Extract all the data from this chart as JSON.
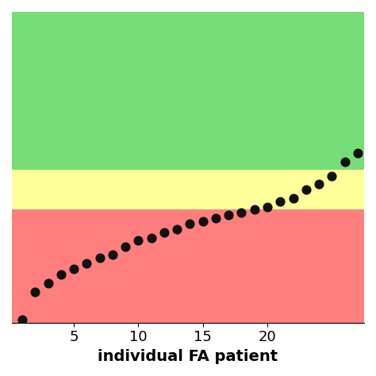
{
  "x_values": [
    1,
    2,
    3,
    4,
    5,
    6,
    7,
    8,
    9,
    10,
    11,
    12,
    13,
    14,
    15,
    16,
    17,
    18,
    19,
    20,
    21,
    22,
    23,
    24,
    25,
    26,
    27
  ],
  "y_values": [
    0.5,
    5.5,
    7.0,
    8.5,
    9.5,
    10.5,
    11.5,
    12.0,
    13.5,
    14.5,
    15.0,
    16.0,
    16.5,
    17.5,
    18.0,
    18.5,
    19.0,
    19.5,
    20.0,
    20.5,
    21.5,
    22.0,
    23.5,
    24.5,
    26.0,
    28.5,
    30.0
  ],
  "xlabel": "individual FA patient",
  "xlabel_fontsize": 14,
  "xlabel_fontweight": "bold",
  "tick_fontsize": 13,
  "red_ymin": 0,
  "red_ymax": 20,
  "yellow_ymin": 20,
  "yellow_ymax": 27,
  "green_ymin": 27,
  "green_ymax": 55,
  "red_color": "#FF7F7F",
  "yellow_color": "#FFFF99",
  "green_color": "#77DD77",
  "dot_color": "#111111",
  "dot_size": 60,
  "xlim_min": 0.2,
  "xlim_max": 27.5,
  "ylim_min": 0,
  "ylim_max": 55,
  "xticks": [
    5,
    10,
    15,
    20
  ],
  "background_color": "#ffffff"
}
